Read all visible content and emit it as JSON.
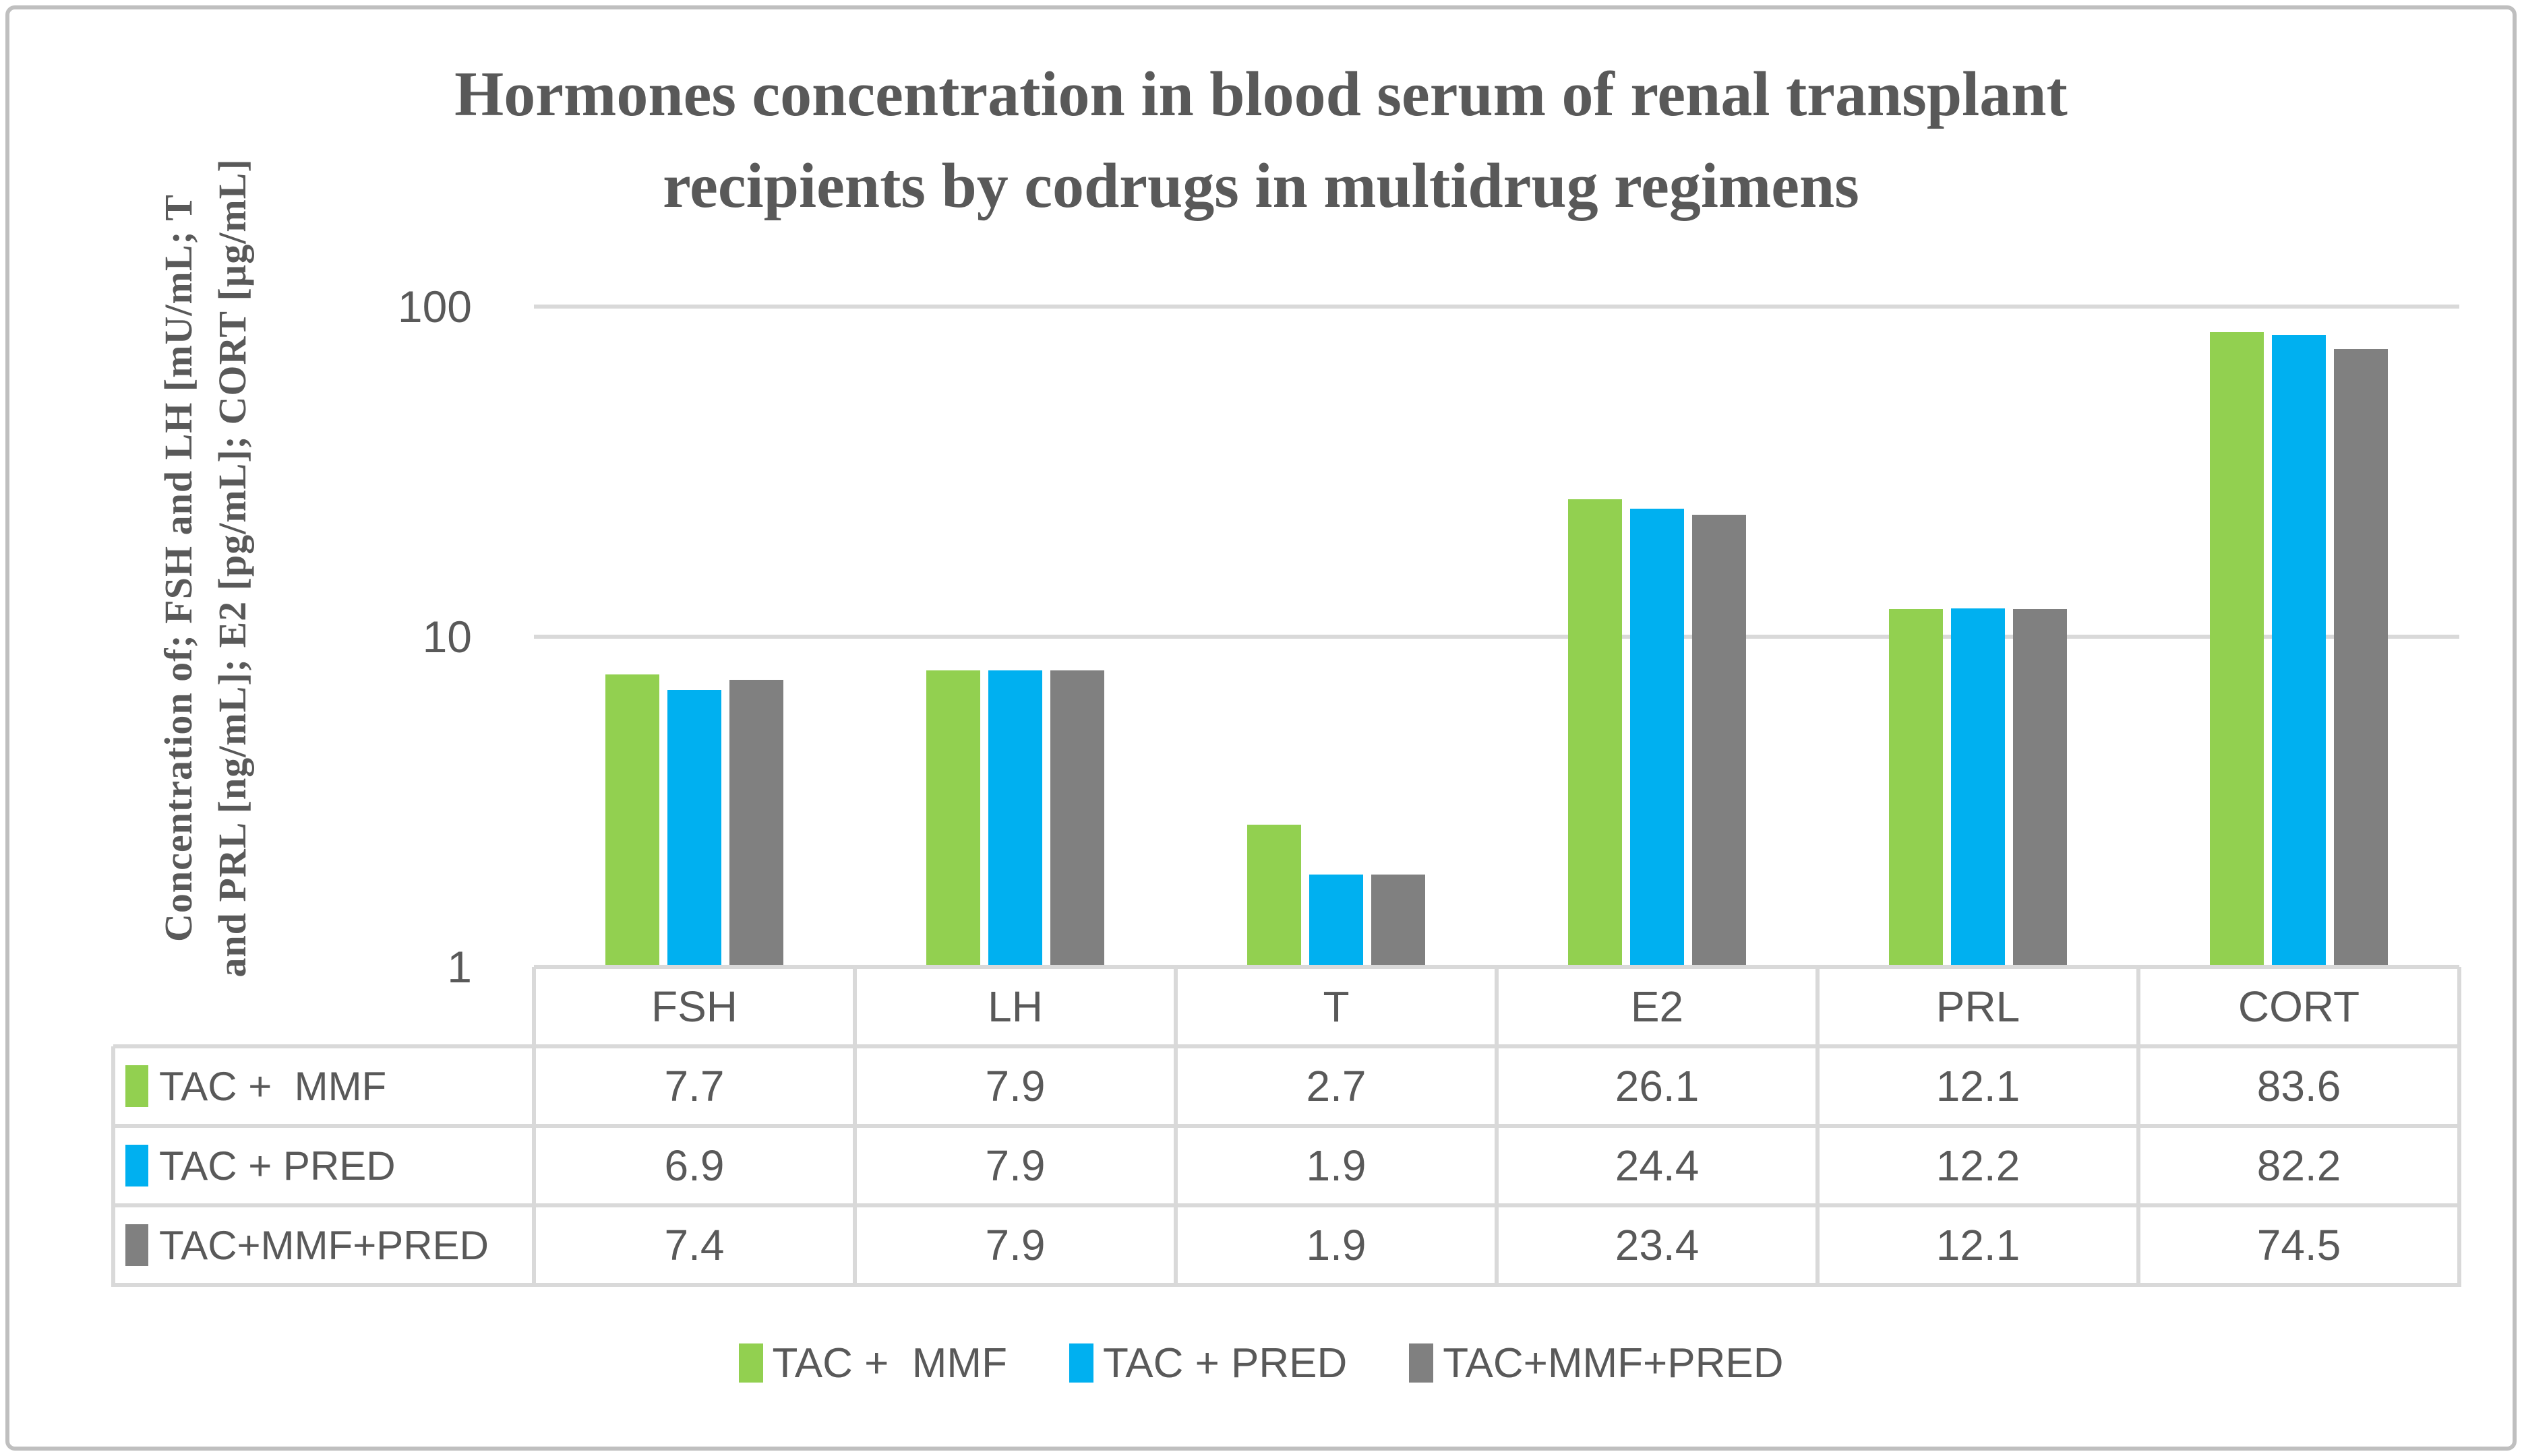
{
  "title": {
    "line1": "Hormones concentration in blood serum of renal transplant",
    "line2": "recipients by codrugs in multidrug regimens"
  },
  "y_axis": {
    "label_line1": "Concentration of; FSH and LH [mU/mL; T",
    "label_line2": "and PRL [ng/mL]; E2 [pg/mL]; CORT [µg/mL]",
    "tick_labels": [
      "100",
      "10",
      "1"
    ]
  },
  "chart_data": {
    "type": "bar",
    "yscale": "log10",
    "ylim": [
      1,
      100
    ],
    "yticks": [
      100,
      10,
      1
    ],
    "grid": true,
    "legend_position": "bottom",
    "title": "Hormones concentration in blood serum of renal transplant recipients by codrugs in multidrug regimens",
    "ylabel": "Concentration of; FSH and LH [mU/mL; T and PRL [ng/mL]; E2 [pg/mL]; CORT [µg/mL]",
    "categories": [
      "FSH",
      "LH",
      "T",
      "E2",
      "PRL",
      "CORT"
    ],
    "series": [
      {
        "name": "TAC +  MMF",
        "color": "#92D050",
        "values": [
          7.7,
          7.9,
          2.7,
          26.1,
          12.1,
          83.6
        ]
      },
      {
        "name": "TAC + PRED",
        "color": "#00B0F0",
        "values": [
          6.9,
          7.9,
          1.9,
          24.4,
          12.2,
          82.2
        ]
      },
      {
        "name": "TAC+MMF+PRED",
        "color": "#808080",
        "values": [
          7.4,
          7.9,
          1.9,
          23.4,
          12.1,
          74.5
        ]
      }
    ]
  },
  "colors": {
    "text": "#595959",
    "grid": "#D9D9D9",
    "frame": "#BFBFBF",
    "green": "#92D050",
    "blue": "#00B0F0",
    "gray": "#808080"
  }
}
